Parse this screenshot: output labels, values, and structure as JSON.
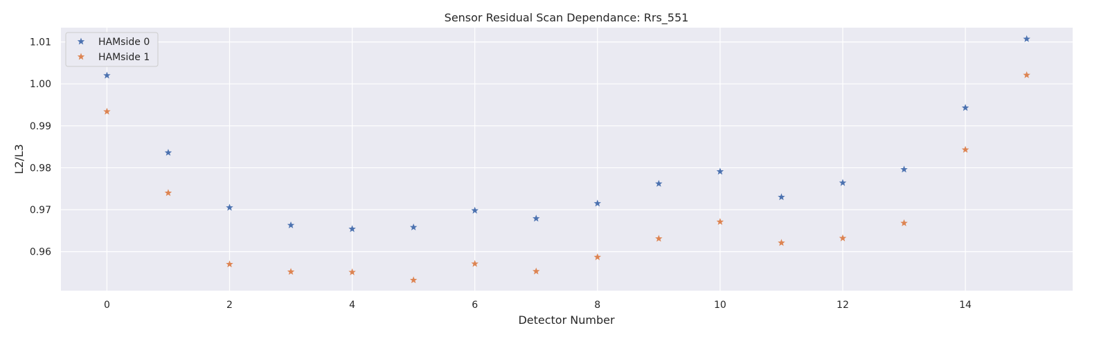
{
  "chart_data": {
    "type": "scatter",
    "title": "Sensor Residual Scan Dependance: Rrs_551",
    "xlabel": "Detector Number",
    "ylabel": "L2/L3",
    "xlim": [
      -0.75,
      15.75
    ],
    "ylim": [
      0.9507,
      1.0134
    ],
    "xticks": [
      0,
      2,
      4,
      6,
      8,
      10,
      12,
      14
    ],
    "yticks": [
      0.96,
      0.97,
      0.98,
      0.99,
      1.0,
      1.01
    ],
    "ytick_labels": [
      "0.96",
      "0.97",
      "0.98",
      "0.99",
      "1.00",
      "1.01"
    ],
    "grid": true,
    "legend_position": "top-left",
    "x": [
      0,
      1,
      2,
      3,
      4,
      5,
      6,
      7,
      8,
      9,
      10,
      11,
      12,
      13,
      14,
      15
    ],
    "series": [
      {
        "name": "HAMside 0",
        "color": "#4c72b0",
        "marker": "star",
        "values": [
          1.002,
          0.9836,
          0.9705,
          0.9663,
          0.9654,
          0.9658,
          0.9698,
          0.9679,
          0.9715,
          0.9762,
          0.9791,
          0.973,
          0.9764,
          0.9796,
          0.9943,
          1.0107
        ]
      },
      {
        "name": "HAMside 1",
        "color": "#dd8452",
        "marker": "star",
        "values": [
          0.9934,
          0.974,
          0.957,
          0.9552,
          0.9551,
          0.9532,
          0.9571,
          0.9553,
          0.9587,
          0.9631,
          0.9671,
          0.9621,
          0.9632,
          0.9668,
          0.9843,
          1.0021
        ]
      }
    ]
  }
}
